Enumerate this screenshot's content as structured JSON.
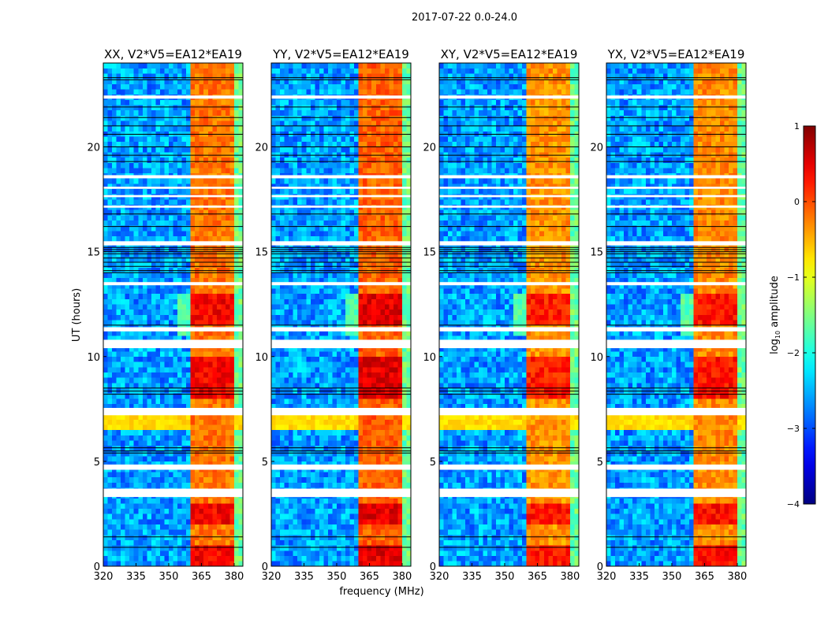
{
  "chart_data": {
    "type": "heatmap",
    "suptitle": "2017-07-22 0.0-24.0",
    "xlabel": "frequency (MHz)",
    "ylabel": "UT (hours)",
    "xlim": [
      320,
      384
    ],
    "ylim": [
      0,
      24
    ],
    "xticks": [
      320,
      335,
      350,
      365,
      380
    ],
    "yticks": [
      0,
      5,
      10,
      15,
      20
    ],
    "colormap": "jet",
    "clim": [
      -4,
      1
    ],
    "colorbar": {
      "label": "log10 amplitude",
      "label_main": "log",
      "label_sub": "10",
      "label_rest": " amplitude",
      "ticks": [
        1,
        0,
        -1,
        -2,
        -3,
        -4
      ],
      "tick_labels": [
        "1",
        "0",
        "−1",
        "−2",
        "−3",
        "−4"
      ]
    },
    "panels": [
      {
        "title": "XX, V2*V5=EA12*EA19",
        "band_level": -0.2,
        "seed": 11
      },
      {
        "title": "YY, V2*V5=EA12*EA19",
        "band_level": -0.1,
        "seed": 23
      },
      {
        "title": "XY, V2*V5=EA12*EA19",
        "band_level": -0.35,
        "seed": 37
      },
      {
        "title": "YX, V2*V5=EA12*EA19",
        "band_level": -0.3,
        "seed": 53
      }
    ],
    "background_level": -2.6,
    "rfi_band_mhz": [
      360,
      380
    ],
    "rfi_gaps_mhz": [
      366,
      372,
      376
    ],
    "edge_band": {
      "range_mhz": [
        380,
        384
      ],
      "level": -1.6
    },
    "strong_rfi_hours": [
      [
        0,
        1
      ],
      [
        2,
        3
      ],
      [
        8,
        10
      ],
      [
        11.5,
        13
      ]
    ],
    "broadband_hours": [
      [
        6.5,
        7.2
      ]
    ],
    "flagged_hours": [
      [
        3.3,
        3.7
      ],
      [
        4.6,
        4.85
      ],
      [
        7.2,
        7.55
      ],
      [
        10.4,
        10.8
      ],
      [
        11.2,
        11.4
      ],
      [
        13.4,
        13.55
      ],
      [
        15.3,
        15.5
      ],
      [
        17.1,
        17.2
      ],
      [
        17.6,
        17.7
      ],
      [
        18.0,
        18.1
      ],
      [
        18.5,
        18.65
      ],
      [
        22.3,
        22.45
      ]
    ],
    "black_line_hours": [
      0.9,
      1.4,
      5.4,
      5.5,
      5.65,
      8.2,
      8.35,
      8.5,
      11.5,
      14.0,
      14.1,
      14.3,
      14.5,
      14.7,
      14.9,
      15.0,
      15.1,
      15.2,
      16.2,
      16.8,
      19.3,
      19.6,
      20.0,
      20.6,
      21.0,
      21.4,
      21.9,
      23.2,
      23.3
    ]
  }
}
